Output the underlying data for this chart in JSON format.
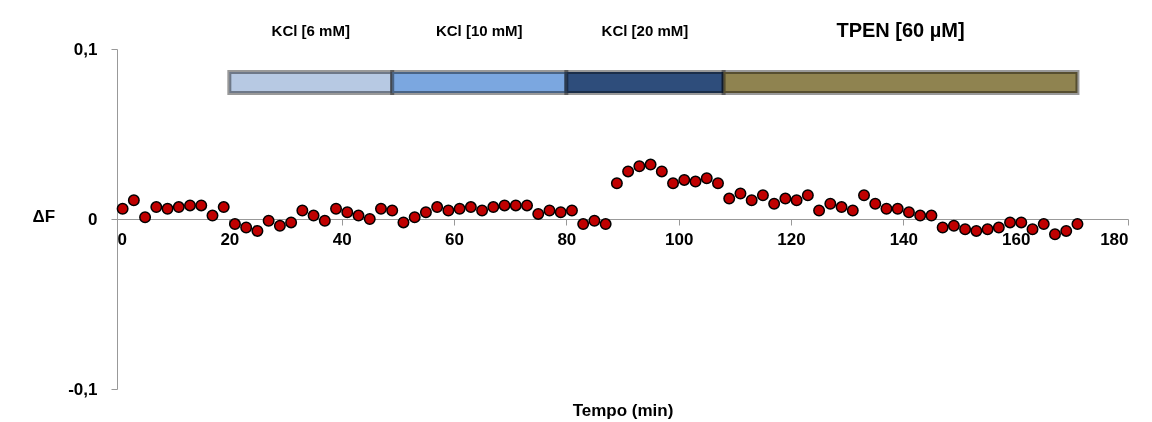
{
  "chart_data": {
    "type": "scatter",
    "xlabel": "Tempo (min)",
    "ylabel": "ΔF",
    "marker": "circle",
    "x": [
      1,
      3,
      5,
      7,
      9,
      11,
      13,
      15,
      17,
      19,
      21,
      23,
      25,
      27,
      29,
      31,
      33,
      35,
      37,
      39,
      41,
      43,
      45,
      47,
      49,
      51,
      53,
      55,
      57,
      59,
      61,
      63,
      65,
      67,
      69,
      71,
      73,
      75,
      77,
      79,
      81,
      83,
      85,
      87,
      89,
      91,
      93,
      95,
      97,
      99,
      101,
      103,
      105,
      107,
      109,
      111,
      113,
      115,
      117,
      119,
      121,
      123,
      125,
      127,
      129,
      131,
      133,
      135,
      137,
      139,
      141,
      143,
      145,
      147,
      149,
      151,
      153,
      155,
      157,
      159,
      161,
      163,
      165,
      167,
      169,
      171
    ],
    "series": [
      {
        "color": "#c00000",
        "values": [
          0.006,
          0.011,
          0.001,
          0.007,
          0.006,
          0.007,
          0.008,
          0.008,
          0.002,
          0.007,
          -0.003,
          -0.005,
          -0.007,
          -0.001,
          -0.004,
          -0.002,
          0.005,
          0.002,
          -0.001,
          0.006,
          0.004,
          0.002,
          0,
          0.006,
          0.005,
          -0.002,
          0.001,
          0.004,
          0.007,
          0.005,
          0.006,
          0.007,
          0.005,
          0.007,
          0.008,
          0.008,
          0.008,
          0.003,
          0.005,
          0.004,
          0.005,
          -0.003,
          -0.001,
          -0.003,
          0.021,
          0.028,
          0.031,
          0.032,
          0.028,
          0.021,
          0.023,
          0.022,
          0.024,
          0.021,
          0.012,
          0.015,
          0.011,
          0.014,
          0.009,
          0.012,
          0.011,
          0.014,
          0.005,
          0.009,
          0.007,
          0.005,
          0.014,
          0.009,
          0.006,
          0.006,
          0.004,
          0.002,
          0.002,
          -0.005,
          -0.004,
          -0.006,
          -0.007,
          -0.006,
          -0.005,
          -0.002,
          -0.002,
          -0.006,
          -0.003,
          -0.009,
          -0.007,
          -0.003
        ]
      }
    ],
    "xlim": [
      0,
      180
    ],
    "xticks": [
      0,
      20,
      40,
      60,
      80,
      100,
      120,
      140,
      160,
      180
    ],
    "ylim": [
      -0.1,
      0.1
    ],
    "yticks": [
      {
        "value": -0.1,
        "label": "-0,1"
      },
      {
        "value": 0,
        "label": "0"
      },
      {
        "value": 0.1,
        "label": "0,1"
      }
    ],
    "bands": [
      {
        "axis": "x",
        "from": 20,
        "to": 49,
        "label": "KCl [6 mM]",
        "color": "#b7c9e3"
      },
      {
        "axis": "x",
        "from": 49,
        "to": 80,
        "label": "KCl [10 mM]",
        "color": "#7ba7e0"
      },
      {
        "axis": "x",
        "from": 80,
        "to": 108,
        "label": "KCl [20 mM]",
        "color": "#2e4d7b"
      },
      {
        "axis": "x",
        "from": 108,
        "to": 171,
        "label": "TPEN [60 µM]",
        "color": "#8f8350"
      }
    ]
  }
}
